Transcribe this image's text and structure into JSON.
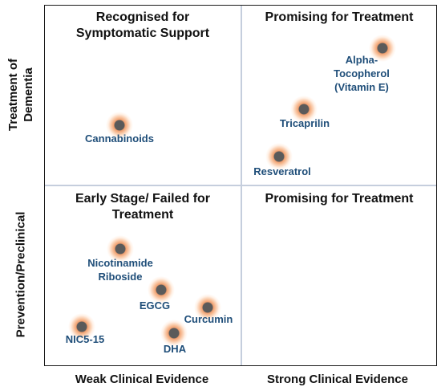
{
  "quadrants": {
    "top_left": "Recognised for\nSymptomatic Support",
    "top_right": "Promising for Treatment",
    "bottom_left": "Early Stage/ Failed for\nTreatment",
    "bottom_right": "Promising for Treatment"
  },
  "axes": {
    "y_top": "Treatment of\nDementia",
    "y_bottom": "Prevention/Preclinical",
    "x_left": "Weak Clinical Evidence",
    "x_right": "Strong Clinical Evidence"
  },
  "compounds": [
    {
      "label": "Cannabinoids"
    },
    {
      "label": "Alpha-Tocopherol\n(Vitamin E)"
    },
    {
      "label": "Tricaprilin"
    },
    {
      "label": "Resveratrol"
    },
    {
      "label": "Nicotinamide\nRiboside"
    },
    {
      "label": "EGCG"
    },
    {
      "label": "Curcumin"
    },
    {
      "label": "NIC5-15"
    },
    {
      "label": "DHA"
    }
  ]
}
